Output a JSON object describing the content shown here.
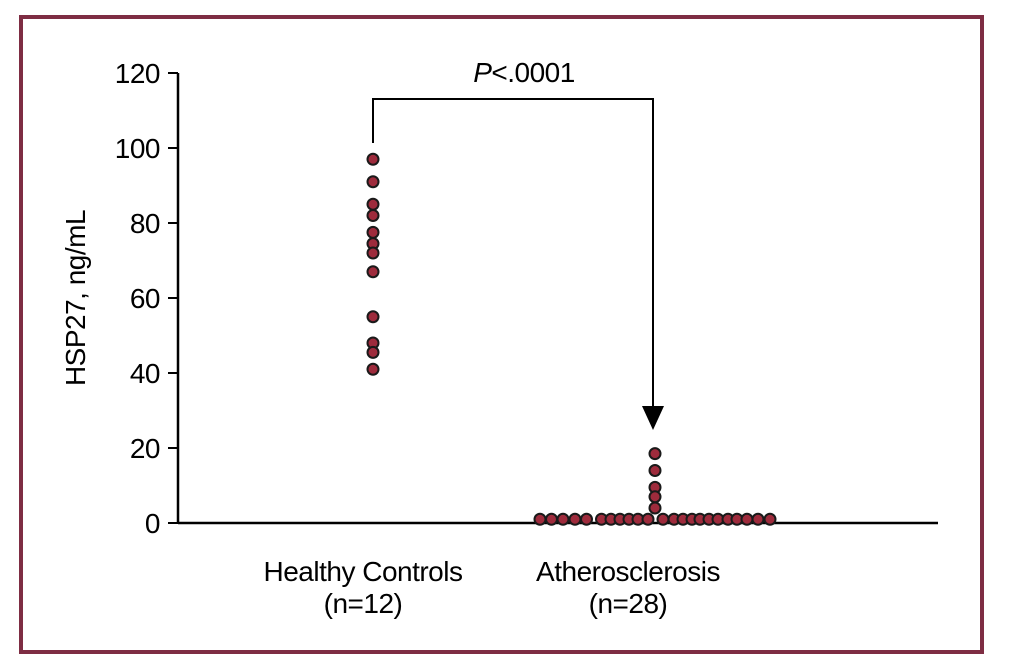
{
  "figure": {
    "border_color": "#7e2d43",
    "background_color": "#ffffff"
  },
  "chart_data": {
    "type": "scatter",
    "title": "",
    "xlabel": "",
    "ylabel": "HSP27, ng/mL",
    "ylim": [
      0,
      120
    ],
    "yticks": [
      120,
      100,
      80,
      60,
      40,
      20,
      0
    ],
    "grid": false,
    "dot_color": "#9e2b3c",
    "dot_outline_color": "#1a1a1a",
    "axis_color": "#000000",
    "annotation": {
      "p_italic": "P",
      "p_value": "<.0001",
      "meaning": "significance bracket with arrow from Healthy Controls to Atherosclerosis"
    },
    "groups": [
      {
        "label": "Healthy Controls",
        "n_label": "(n=12)",
        "n": 12,
        "values": [
          97,
          91,
          85,
          82,
          77.5,
          74.5,
          72,
          67,
          55,
          48,
          45.5,
          41
        ],
        "x_offsets": [
          0,
          0,
          0,
          0,
          0,
          0,
          0,
          0,
          0,
          0,
          0,
          0
        ]
      },
      {
        "label": "Atherosclerosis",
        "n_label": "(n=28)",
        "n": 28,
        "values": [
          18.5,
          14,
          9.5,
          7,
          4,
          1,
          1,
          1,
          1,
          1,
          1,
          1,
          1,
          1,
          1,
          1,
          1,
          1,
          1,
          1,
          1,
          1,
          1,
          1,
          1,
          1,
          1,
          1
        ],
        "x_offsets": [
          0,
          0,
          0,
          0,
          0,
          -115,
          -103.5,
          -92,
          -80,
          -68.5,
          -53.5,
          -44,
          -35,
          -26,
          -17,
          -7,
          8,
          19,
          28,
          37,
          45,
          54,
          63,
          73,
          82,
          92,
          103,
          115
        ]
      }
    ]
  }
}
